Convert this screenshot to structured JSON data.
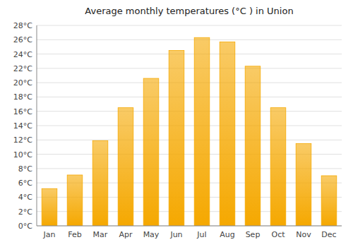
{
  "chart_data": {
    "type": "bar",
    "title": "Average monthly temperatures (°C ) in Union",
    "categories": [
      "Jan",
      "Feb",
      "Mar",
      "Apr",
      "May",
      "Jun",
      "Jul",
      "Aug",
      "Sep",
      "Oct",
      "Nov",
      "Dec"
    ],
    "values": [
      5.2,
      7.1,
      11.9,
      16.5,
      20.6,
      24.5,
      26.3,
      25.7,
      22.3,
      16.5,
      11.5,
      7.0
    ],
    "color": "#F5A800",
    "ylim": [
      0,
      28
    ],
    "yticks": [
      {
        "value": 0,
        "label": "0°C"
      },
      {
        "value": 2,
        "label": "2°C"
      },
      {
        "value": 4,
        "label": "4°C"
      },
      {
        "value": 6,
        "label": "6°C"
      },
      {
        "value": 8,
        "label": "8°C"
      },
      {
        "value": 10,
        "label": "10°C"
      },
      {
        "value": 12,
        "label": "12°C"
      },
      {
        "value": 14,
        "label": "14°C"
      },
      {
        "value": 16,
        "label": "16°C"
      },
      {
        "value": 18,
        "label": "18°C"
      },
      {
        "value": 20,
        "label": "20°C"
      },
      {
        "value": 22,
        "label": "22°C"
      },
      {
        "value": 24,
        "label": "24°C"
      },
      {
        "value": 26,
        "label": "26°C"
      },
      {
        "value": 28,
        "label": "28°C"
      }
    ],
    "grid": true
  }
}
